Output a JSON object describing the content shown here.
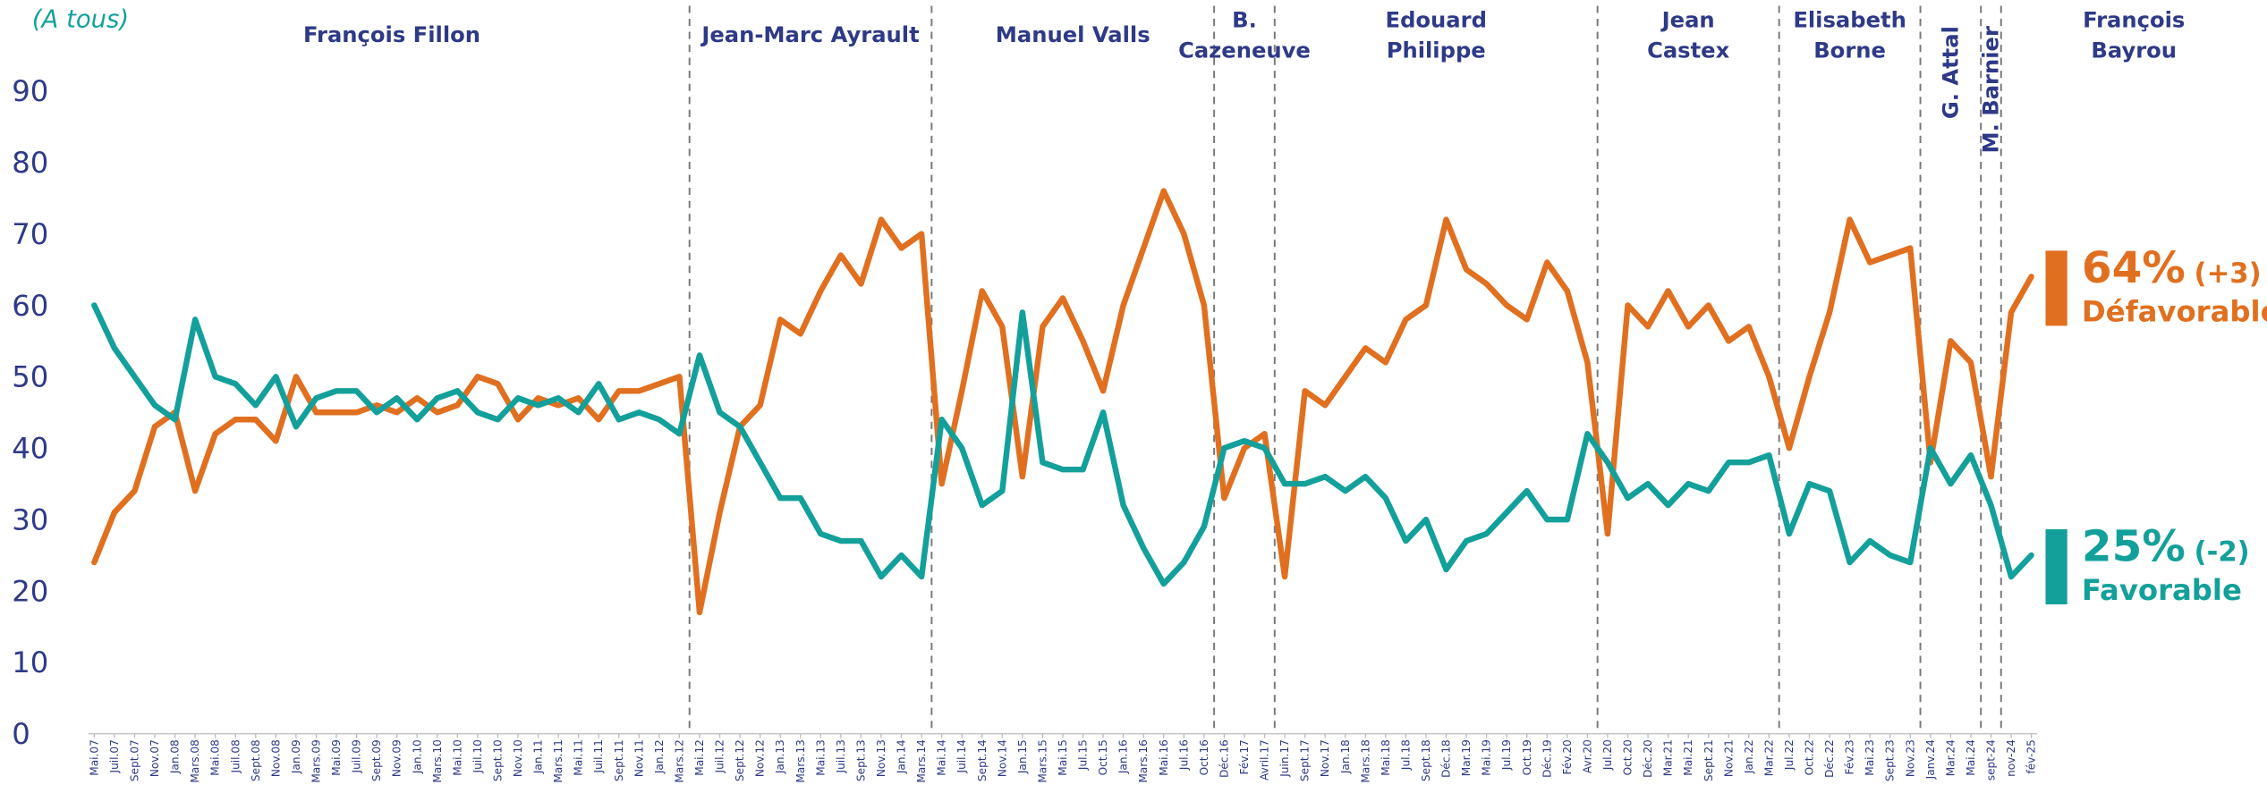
{
  "chart_data": {
    "type": "line",
    "subtitle": "(A tous)",
    "categories": [
      "Mai.07",
      "Juil.07",
      "Sept.07",
      "Nov.07",
      "Jan.08",
      "Mars.08",
      "Mai.08",
      "Juil.08",
      "Sept.08",
      "Nov.08",
      "Jan.09",
      "Mars.09",
      "Mai.09",
      "Juil.09",
      "Sept.09",
      "Nov.09",
      "Jan.10",
      "Mars.10",
      "Mai.10",
      "Juil.10",
      "Sept.10",
      "Nov.10",
      "Jan.11",
      "Mars.11",
      "Mai.11",
      "Juil.11",
      "Sept.11",
      "Nov.11",
      "Jan.12",
      "Mars.12",
      "Mai.12",
      "Juil.12",
      "Sept.12",
      "Nov.12",
      "Jan.13",
      "Mars.13",
      "Mai.13",
      "Juil.13",
      "Sept.13",
      "Nov.13",
      "Jan.14",
      "Mars.14",
      "Mai.14",
      "Juil.14",
      "Sept.14",
      "Nov.14",
      "Jan.15",
      "Mars.15",
      "Mai.15",
      "Jul.15",
      "Oct.15",
      "Jan.16",
      "Mars.16",
      "Mai.16",
      "Jul.16",
      "Oct.16",
      "Déc.16",
      "Fév.17",
      "Avril.17",
      "Juin.17",
      "Sept.17",
      "Nov.17",
      "Jan.18",
      "Mars.18",
      "Mai.18",
      "Jul.18",
      "Sept.18",
      "Déc.18",
      "Mar.19",
      "Mai.19",
      "Jul.19",
      "Oct.19",
      "Déc.19",
      "Fév.20",
      "Avr.20",
      "Jul.20",
      "Oct.20",
      "Déc.20",
      "Mar.21",
      "Mai.21",
      "Sept.21",
      "Nov.21",
      "Jan.22",
      "Mar.22",
      "Jul.22",
      "Oct.22",
      "Déc.22",
      "Fév.23",
      "Mai.23",
      "Sept.23",
      "Nov.23",
      "Janv.24",
      "Mar.24",
      "Mai.24",
      "sept-24",
      "nov-24",
      "fév-25"
    ],
    "series": [
      {
        "name": "Défavorable",
        "end_label": "64%",
        "change": "(+3)",
        "color": "#e07020",
        "values": [
          24,
          31,
          34,
          43,
          45,
          34,
          42,
          44,
          44,
          41,
          50,
          45,
          45,
          45,
          46,
          45,
          47,
          45,
          46,
          50,
          49,
          44,
          47,
          46,
          47,
          44,
          48,
          48,
          49,
          50,
          17,
          31,
          43,
          46,
          58,
          56,
          62,
          67,
          63,
          72,
          68,
          70,
          35,
          48,
          62,
          57,
          36,
          57,
          61,
          55,
          48,
          60,
          68,
          76,
          70,
          60,
          33,
          40,
          42,
          22,
          48,
          46,
          50,
          54,
          52,
          58,
          60,
          72,
          65,
          63,
          60,
          58,
          66,
          62,
          52,
          28,
          60,
          57,
          62,
          57,
          60,
          55,
          57,
          50,
          40,
          50,
          59,
          72,
          66,
          67,
          68,
          38,
          55,
          52,
          36,
          59,
          64
        ]
      },
      {
        "name": "Favorable",
        "end_label": "25%",
        "change": "(-2)",
        "color": "#14a09a",
        "values": [
          60,
          54,
          50,
          46,
          44,
          58,
          50,
          49,
          46,
          50,
          43,
          47,
          48,
          48,
          45,
          47,
          44,
          47,
          48,
          45,
          44,
          47,
          46,
          47,
          45,
          49,
          44,
          45,
          44,
          42,
          53,
          45,
          43,
          38,
          33,
          33,
          28,
          27,
          27,
          22,
          25,
          22,
          44,
          40,
          32,
          34,
          59,
          38,
          37,
          37,
          45,
          32,
          26,
          21,
          24,
          29,
          40,
          41,
          40,
          35,
          35,
          36,
          34,
          36,
          33,
          27,
          30,
          23,
          27,
          28,
          31,
          34,
          30,
          30,
          42,
          38,
          33,
          35,
          32,
          35,
          34,
          38,
          38,
          39,
          28,
          35,
          34,
          24,
          27,
          25,
          24,
          40,
          35,
          39,
          32,
          22,
          25
        ]
      }
    ],
    "periods": [
      {
        "name": [
          "François Fillon"
        ],
        "start": "Mai.07"
      },
      {
        "name": [
          "Jean-Marc Ayrault"
        ],
        "start": "Mai.12"
      },
      {
        "name": [
          "Manuel Valls"
        ],
        "start": "Mai.14"
      },
      {
        "name": [
          "B.",
          "Cazeneuve"
        ],
        "start": "Déc.16"
      },
      {
        "name": [
          "Edouard",
          "Philippe"
        ],
        "start": "Juin.17"
      },
      {
        "name": [
          "Jean",
          "Castex"
        ],
        "start": "Jul.20"
      },
      {
        "name": [
          "Elisabeth",
          "Borne"
        ],
        "start": "Jul.22"
      },
      {
        "name": [
          "G. Attal"
        ],
        "start": "Janv.24",
        "rotated": true
      },
      {
        "name": [
          "M. Barnier"
        ],
        "start": "sept-24",
        "rotated": true
      },
      {
        "name": [
          "François",
          "Bayrou"
        ],
        "start": "nov-24"
      }
    ],
    "ylim": [
      0,
      90
    ],
    "yticks": [
      0,
      10,
      20,
      30,
      40,
      50,
      60,
      70,
      80,
      90
    ],
    "grid": false
  }
}
